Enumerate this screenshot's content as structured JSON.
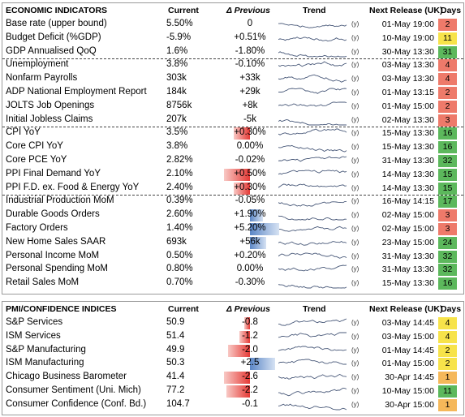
{
  "economic": {
    "header": {
      "title": "ECONOMIC INDICATORS",
      "current": "Current",
      "previous": "Δ Previous",
      "trend": "Trend",
      "next": "Next Release (UK)",
      "days": "Days"
    },
    "rows": [
      {
        "name": "Base rate (upper bound)",
        "current": "5.50%",
        "prev": "0",
        "next": "01-May 19:00",
        "days": "2",
        "color": "#ee7a6a",
        "bar": 0,
        "yy": "(y)"
      },
      {
        "name": "Budget Deficit (%GDP)",
        "current": "-5.9%",
        "prev": "+0.51%",
        "next": "10-May 19:00",
        "days": "11",
        "color": "#f7e34a",
        "bar": 0,
        "yy": "(y)"
      },
      {
        "name": "GDP Annualised QoQ",
        "current": "1.6%",
        "prev": "-1.80%",
        "next": "30-May 13:30",
        "days": "31",
        "color": "#5cb85c",
        "bar": 0,
        "yy": "(y)"
      },
      {
        "name": "Unemployment",
        "current": "3.8%",
        "prev": "-0.10%",
        "next": "03-May 13:30",
        "days": "4",
        "color": "#ee7a6a",
        "bar": 0,
        "yy": "(y)"
      },
      {
        "name": "Nonfarm Payrolls",
        "current": "303k",
        "prev": "+33k",
        "next": "03-May 13:30",
        "days": "4",
        "color": "#ee7a6a",
        "bar": 0,
        "yy": "(y)"
      },
      {
        "name": "ADP National Employment Report",
        "current": "184k",
        "prev": "+29k",
        "next": "01-May 13:15",
        "days": "2",
        "color": "#ee7a6a",
        "bar": 0,
        "yy": "(y)"
      },
      {
        "name": "JOLTS Job Openings",
        "current": "8756k",
        "prev": "+8k",
        "next": "01-May 15:00",
        "days": "2",
        "color": "#ee7a6a",
        "bar": 0,
        "yy": "(y)"
      },
      {
        "name": "Initial Jobless Claims",
        "current": "207k",
        "prev": "-5k",
        "next": "02-May 13:30",
        "days": "3",
        "color": "#ee7a6a",
        "bar": 0,
        "yy": "(y)"
      },
      {
        "name": "CPI YoY",
        "current": "3.5%",
        "prev": "+0.30%",
        "next": "15-May 13:30",
        "days": "16",
        "color": "#5cb85c",
        "bar": -0.55,
        "yy": "(y)"
      },
      {
        "name": "Core CPI YoY",
        "current": "3.8%",
        "prev": "0.00%",
        "next": "15-May 13:30",
        "days": "16",
        "color": "#5cb85c",
        "bar": 0,
        "yy": "(y)"
      },
      {
        "name": "Core PCE YoY",
        "current": "2.82%",
        "prev": "-0.02%",
        "next": "31-May 13:30",
        "days": "32",
        "color": "#5cb85c",
        "bar": 0,
        "yy": "(y)"
      },
      {
        "name": "PPI Final Demand YoY",
        "current": "2.10%",
        "prev": "+0.50%",
        "next": "14-May 13:30",
        "days": "15",
        "color": "#5cb85c",
        "bar": -0.9,
        "yy": "(y)"
      },
      {
        "name": "PPI F.D. ex. Food & Energy YoY",
        "current": "2.40%",
        "prev": "+0.30%",
        "next": "14-May 13:30",
        "days": "15",
        "color": "#5cb85c",
        "bar": -0.55,
        "yy": "(y)"
      },
      {
        "name": "Industrial Production MoM",
        "current": "0.39%",
        "prev": "-0.05%",
        "next": "16-May 14:15",
        "days": "17",
        "color": "#5cb85c",
        "bar": 0,
        "yy": "(y)"
      },
      {
        "name": "Durable Goods Orders",
        "current": "2.60%",
        "prev": "+1.90%",
        "next": "02-May 15:00",
        "days": "3",
        "color": "#ee7a6a",
        "bar": 0.45,
        "yy": "(y)"
      },
      {
        "name": "Factory Orders",
        "current": "1.40%",
        "prev": "+5.20%",
        "next": "02-May 15:00",
        "days": "3",
        "color": "#ee7a6a",
        "bar": 1.0,
        "yy": "(y)"
      },
      {
        "name": "New Home Sales SAAR",
        "current": "693k",
        "prev": "+56k",
        "next": "23-May 15:00",
        "days": "24",
        "color": "#5cb85c",
        "bar": 0.55,
        "yy": "(y)"
      },
      {
        "name": "Personal Income MoM",
        "current": "0.50%",
        "prev": "+0.20%",
        "next": "31-May 13:30",
        "days": "32",
        "color": "#5cb85c",
        "bar": 0,
        "yy": "(y)"
      },
      {
        "name": "Personal Spending MoM",
        "current": "0.80%",
        "prev": "0.00%",
        "next": "31-May 13:30",
        "days": "32",
        "color": "#5cb85c",
        "bar": 0,
        "yy": "(y)"
      },
      {
        "name": "Retail Sales MoM",
        "current": "0.70%",
        "prev": "-0.30%",
        "next": "15-May 13:30",
        "days": "16",
        "color": "#5cb85c",
        "bar": 0,
        "yy": "(y)"
      }
    ]
  },
  "pmi": {
    "header": {
      "title": "PMI/CONFIDENCE INDICES",
      "current": "Current",
      "previous": "Δ Previous",
      "trend": "Trend",
      "next": "Next Release (UK)",
      "days": "Days"
    },
    "rows": [
      {
        "name": "S&P Services",
        "current": "50.9",
        "prev": "-0.8",
        "next": "03-May 14:45",
        "days": "4",
        "color": "#f7e34a",
        "bar": -0.2,
        "yy": "(y)"
      },
      {
        "name": "ISM Services",
        "current": "51.4",
        "prev": "-1.2",
        "next": "03-May 15:00",
        "days": "4",
        "color": "#f7e34a",
        "bar": -0.35,
        "yy": "(y)"
      },
      {
        "name": "S&P Manufacturing",
        "current": "49.9",
        "prev": "-2.0",
        "next": "01-May 14:45",
        "days": "2",
        "color": "#f7e34a",
        "bar": -0.75,
        "yy": "(y)"
      },
      {
        "name": "ISM Manufacturing",
        "current": "50.3",
        "prev": "+2.5",
        "next": "01-May 15:00",
        "days": "2",
        "color": "#f7e34a",
        "bar": 0.85,
        "yy": "(y)"
      },
      {
        "name": "Chicago Business Barometer",
        "current": "41.4",
        "prev": "-2.6",
        "next": "30-Apr 14:45",
        "days": "1",
        "color": "#f5b85a",
        "bar": -0.9,
        "yy": "(y)"
      },
      {
        "name": "Consumer Sentiment (Uni. Mich)",
        "current": "77.2",
        "prev": "-2.2",
        "next": "10-May 15:00",
        "days": "11",
        "color": "#5cb85c",
        "bar": -0.8,
        "yy": "(y)"
      },
      {
        "name": "Consumer Confidence (Conf. Bd.)",
        "current": "104.7",
        "prev": "-0.1",
        "next": "30-Apr 15:00",
        "days": "1",
        "color": "#f5b85a",
        "bar": 0,
        "yy": "(y)"
      }
    ]
  }
}
